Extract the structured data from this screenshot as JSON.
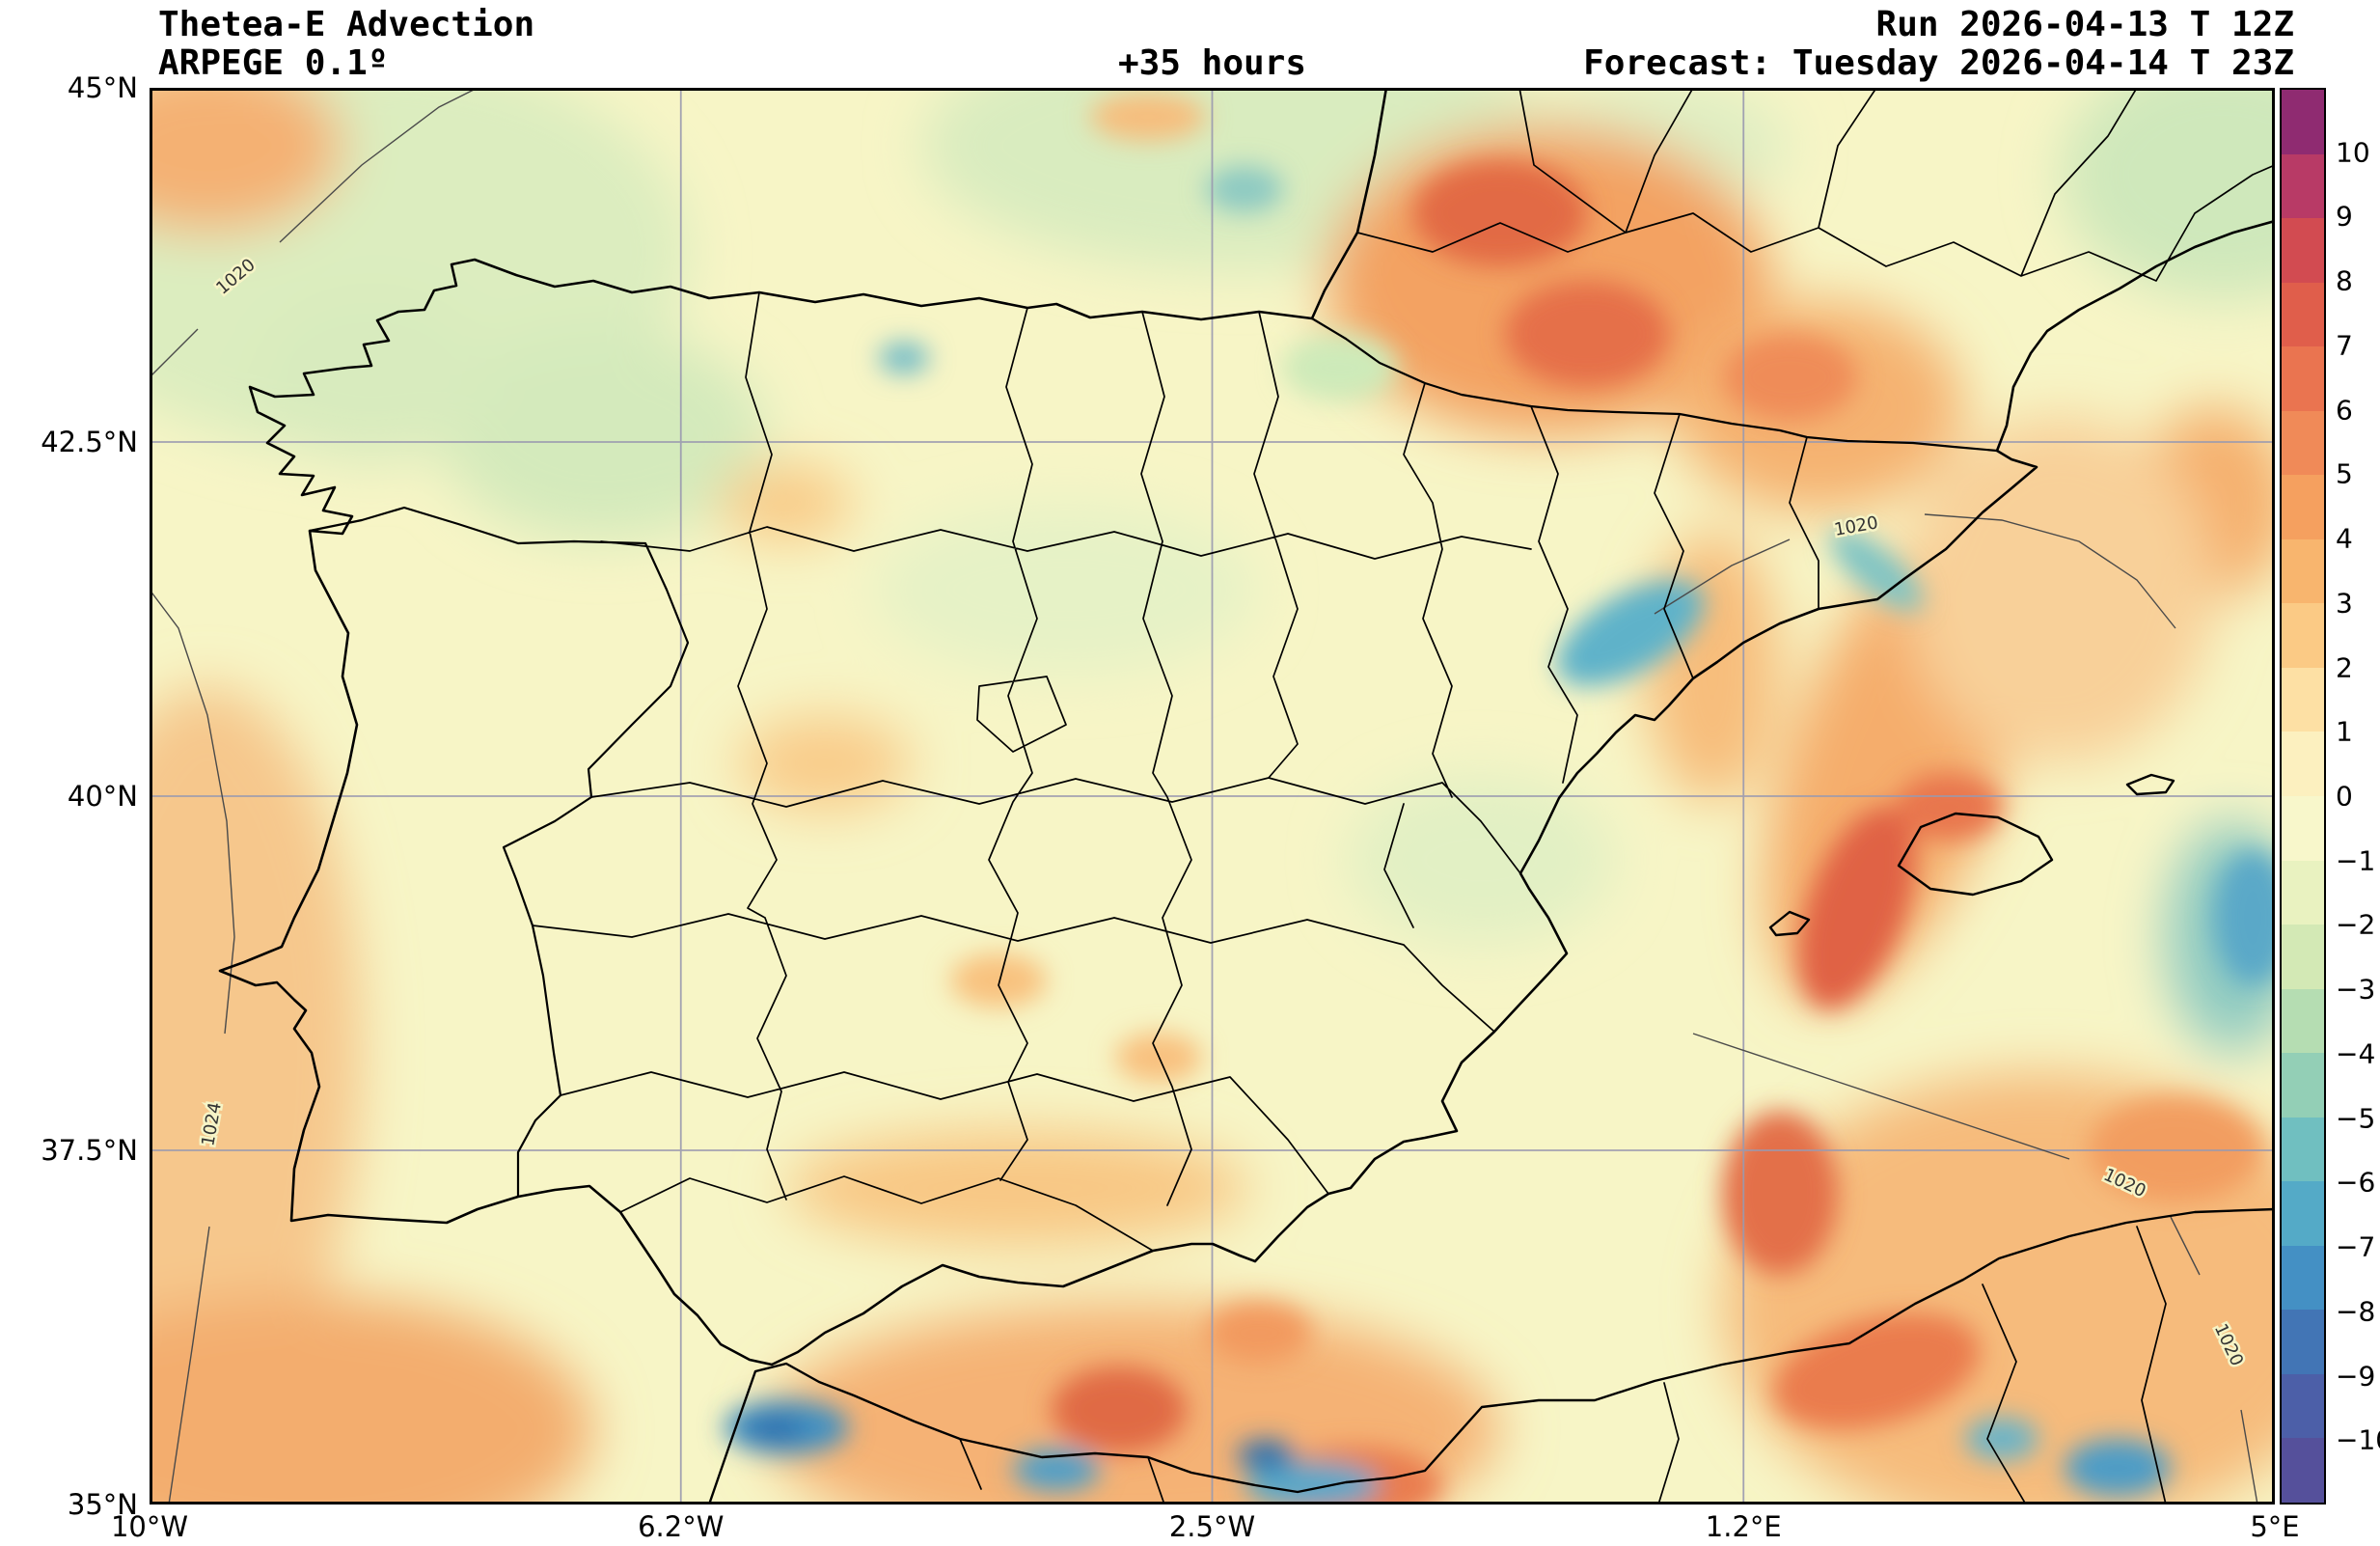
{
  "header": {
    "title": "Thetea-E Advection",
    "model": "ARPEGE 0.1º",
    "lead_time": "+35 hours",
    "run": "Run 2026-04-13 T 12Z",
    "forecast": "Forecast: Tuesday 2026-04-14 T 23Z"
  },
  "axes": {
    "yticks": [
      "45°N",
      "42.5°N",
      "40°N",
      "37.5°N",
      "35°N"
    ],
    "xticks": [
      "10°W",
      "6.2°W",
      "2.5°W",
      "1.2°E",
      "5°E"
    ]
  },
  "colorbar": {
    "ticks": [
      "10",
      "9",
      "8",
      "7",
      "6",
      "5",
      "4",
      "3",
      "2",
      "1",
      "0",
      "−1",
      "−2",
      "−3",
      "−4",
      "−5",
      "−6",
      "−7",
      "−8",
      "−9",
      "−10"
    ],
    "colors": [
      "#8f2b71",
      "#b83a66",
      "#d24b51",
      "#e05e4b",
      "#ea7450",
      "#f08a58",
      "#f5a05f",
      "#f8b56e",
      "#fbca85",
      "#fde0a4",
      "#fcf0bf",
      "#f8f7cb",
      "#e9f2c0",
      "#d3e9b5",
      "#b5ddb2",
      "#93cfb6",
      "#70bfc0",
      "#54aac7",
      "#4490c4",
      "#4275b5",
      "#4c5fa8",
      "#55509b"
    ]
  },
  "map": {
    "isobars": [
      "1020",
      "1024",
      "1020",
      "1020",
      "1020"
    ],
    "base_color": "#f7f5c6",
    "grid_color": "#9a9ab0",
    "coast_color": "#000000",
    "isobar_color": "#4a4a4a"
  },
  "chart_data": {
    "type": "heatmap",
    "title": "Thetea-E Advection",
    "x_ticks": [
      "10°W",
      "6.2°W",
      "2.5°W",
      "1.2°E",
      "5°E"
    ],
    "y_ticks": [
      "45°N",
      "42.5°N",
      "40°N",
      "37.5°N",
      "35°N"
    ],
    "colorbar_ticks": [
      10,
      9,
      8,
      7,
      6,
      5,
      4,
      3,
      2,
      1,
      0,
      -1,
      -2,
      -3,
      -4,
      -5,
      -6,
      -7,
      -8,
      -9,
      -10
    ],
    "colorbar_range": [
      -10,
      10
    ]
  }
}
